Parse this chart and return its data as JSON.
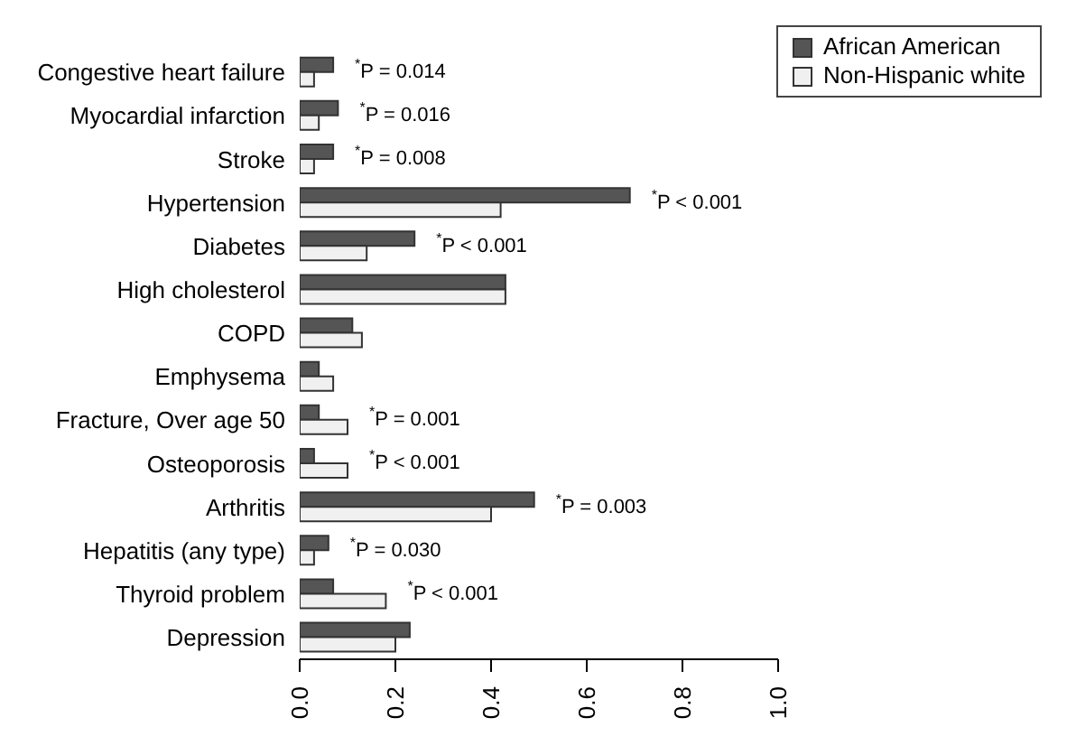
{
  "chart_data": {
    "type": "bar",
    "orientation": "horizontal",
    "categories": [
      "Congestive heart failure",
      "Myocardial infarction",
      "Stroke",
      "Hypertension",
      "Diabetes",
      "High cholesterol",
      "COPD",
      "Emphysema",
      "Fracture, Over age 50",
      "Osteoporosis",
      "Arthritis",
      "Hepatitis (any type)",
      "Thyroid problem",
      "Depression"
    ],
    "series": [
      {
        "name": "African American",
        "color": "#555555",
        "values": [
          0.07,
          0.08,
          0.07,
          0.69,
          0.24,
          0.43,
          0.11,
          0.04,
          0.04,
          0.03,
          0.49,
          0.06,
          0.07,
          0.23
        ]
      },
      {
        "name": "Non-Hispanic white",
        "color": "#f0f0f0",
        "values": [
          0.03,
          0.04,
          0.03,
          0.42,
          0.14,
          0.43,
          0.13,
          0.07,
          0.1,
          0.1,
          0.4,
          0.03,
          0.18,
          0.2
        ]
      }
    ],
    "xlim": [
      0,
      1
    ],
    "xticks": [
      {
        "value": 0,
        "label": "0.0"
      },
      0.2,
      0.4,
      0.6,
      0.8,
      {
        "value": 1,
        "label": "1.0"
      }
    ],
    "grid": false,
    "legend": "top right",
    "annotations": [
      {
        "text": "$^{*}$P = 0.014",
        "x": 0.07,
        "y": "Congestive heart failure"
      },
      {
        "text": "$^{*}$P = 0.016",
        "x": 0.08,
        "y": "Myocardial infarction"
      },
      {
        "text": "$^{*}$P = 0.008",
        "x": 0.07,
        "y": "Stroke"
      },
      {
        "text": "$^{*}$P < 0.001",
        "x": 0.69,
        "y": "Hypertension"
      },
      {
        "text": "$^{*}$P < 0.001",
        "x": 0.24,
        "y": "Diabetes"
      },
      {
        "text": "$^{*}$P = 0.001",
        "x": 0.1,
        "y": "Fracture, Over age 50"
      },
      {
        "text": "$^{*}$P < 0.001",
        "x": 0.1,
        "y": "Osteoporosis"
      },
      {
        "text": "$^{*}$P = 0.003",
        "x": 0.49,
        "y": "Arthritis"
      },
      {
        "text": "$^{*}$P = 0.030",
        "x": 0.06,
        "y": "Hepatitis (any type)"
      },
      {
        "text": "$^{*}$P < 0.001",
        "x": 0.18,
        "y": "Thyroid problem"
      }
    ]
  }
}
